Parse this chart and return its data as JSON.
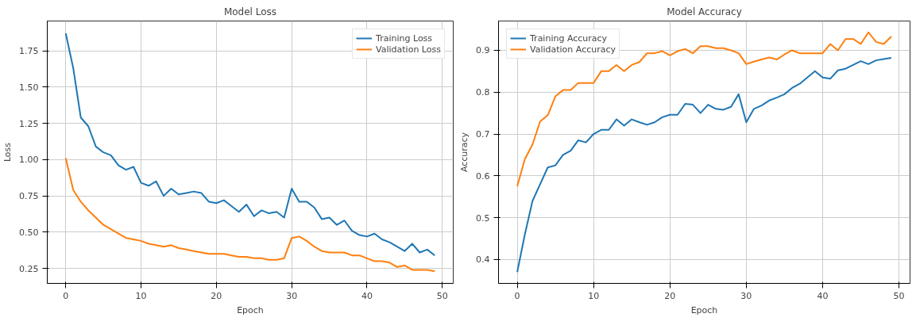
{
  "chart_data": [
    {
      "type": "line",
      "title": "Model Loss",
      "xlabel": "Epoch",
      "ylabel": "Loss",
      "x": [
        0,
        1,
        2,
        3,
        4,
        5,
        6,
        7,
        8,
        9,
        10,
        11,
        12,
        13,
        14,
        15,
        16,
        17,
        18,
        19,
        20,
        21,
        22,
        23,
        24,
        25,
        26,
        27,
        28,
        29,
        30,
        31,
        32,
        33,
        34,
        35,
        36,
        37,
        38,
        39,
        40,
        41,
        42,
        43,
        44,
        45,
        46,
        47,
        48,
        49
      ],
      "series": [
        {
          "name": "Training Loss",
          "color": "#1f77b4",
          "values": [
            1.87,
            1.63,
            1.29,
            1.23,
            1.09,
            1.05,
            1.03,
            0.96,
            0.93,
            0.95,
            0.84,
            0.82,
            0.85,
            0.75,
            0.8,
            0.76,
            0.77,
            0.78,
            0.77,
            0.71,
            0.7,
            0.72,
            0.68,
            0.64,
            0.69,
            0.61,
            0.65,
            0.63,
            0.64,
            0.6,
            0.8,
            0.71,
            0.71,
            0.67,
            0.59,
            0.6,
            0.55,
            0.58,
            0.51,
            0.48,
            0.47,
            0.49,
            0.45,
            0.43,
            0.4,
            0.37,
            0.42,
            0.36,
            0.38,
            0.34
          ]
        },
        {
          "name": "Validation Loss",
          "color": "#ff7f0e",
          "values": [
            1.01,
            0.79,
            0.71,
            0.65,
            0.6,
            0.55,
            0.52,
            0.49,
            0.46,
            0.45,
            0.44,
            0.42,
            0.41,
            0.4,
            0.41,
            0.39,
            0.38,
            0.37,
            0.36,
            0.35,
            0.35,
            0.35,
            0.34,
            0.33,
            0.33,
            0.32,
            0.32,
            0.31,
            0.31,
            0.32,
            0.46,
            0.47,
            0.44,
            0.4,
            0.37,
            0.36,
            0.36,
            0.36,
            0.34,
            0.34,
            0.32,
            0.3,
            0.3,
            0.29,
            0.26,
            0.27,
            0.24,
            0.24,
            0.24,
            0.23
          ]
        }
      ],
      "xlim": [
        -2.45,
        51.45
      ],
      "xticks": [
        0,
        10,
        20,
        30,
        40,
        50
      ],
      "ylim": [
        0.147,
        1.955
      ],
      "yticks": [
        {
          "value": 0.25,
          "label": "0.25"
        },
        {
          "value": 0.5,
          "label": "0.50"
        },
        {
          "value": 0.75,
          "label": "0.75"
        },
        {
          "value": 1.0,
          "label": "1.00"
        },
        {
          "value": 1.25,
          "label": "1.25"
        },
        {
          "value": 1.5,
          "label": "1.50"
        },
        {
          "value": 1.75,
          "label": "1.75"
        }
      ],
      "grid": true,
      "legend": "top right",
      "line_style": "solid"
    },
    {
      "type": "line",
      "title": "Model Accuracy",
      "xlabel": "Epoch",
      "ylabel": "Accuracy",
      "x": [
        0,
        1,
        2,
        3,
        4,
        5,
        6,
        7,
        8,
        9,
        10,
        11,
        12,
        13,
        14,
        15,
        16,
        17,
        18,
        19,
        20,
        21,
        22,
        23,
        24,
        25,
        26,
        27,
        28,
        29,
        30,
        31,
        32,
        33,
        34,
        35,
        36,
        37,
        38,
        39,
        40,
        41,
        42,
        43,
        44,
        45,
        46,
        47,
        48,
        49
      ],
      "series": [
        {
          "name": "Training Accuracy",
          "color": "#1f77b4",
          "values": [
            0.37,
            0.46,
            0.54,
            0.58,
            0.62,
            0.625,
            0.65,
            0.66,
            0.685,
            0.68,
            0.7,
            0.71,
            0.71,
            0.735,
            0.72,
            0.735,
            0.728,
            0.722,
            0.728,
            0.74,
            0.746,
            0.746,
            0.772,
            0.77,
            0.75,
            0.77,
            0.76,
            0.758,
            0.765,
            0.795,
            0.728,
            0.76,
            0.768,
            0.78,
            0.787,
            0.795,
            0.81,
            0.82,
            0.835,
            0.85,
            0.835,
            0.832,
            0.852,
            0.856,
            0.865,
            0.874,
            0.867,
            0.876,
            0.879,
            0.882
          ]
        },
        {
          "name": "Validation Accuracy",
          "color": "#ff7f0e",
          "values": [
            0.575,
            0.64,
            0.675,
            0.73,
            0.745,
            0.79,
            0.805,
            0.805,
            0.822,
            0.822,
            0.822,
            0.85,
            0.85,
            0.865,
            0.85,
            0.865,
            0.872,
            0.893,
            0.893,
            0.898,
            0.888,
            0.898,
            0.903,
            0.893,
            0.91,
            0.91,
            0.905,
            0.905,
            0.9,
            0.893,
            0.867,
            0.873,
            0.878,
            0.883,
            0.878,
            0.89,
            0.9,
            0.893,
            0.893,
            0.893,
            0.893,
            0.915,
            0.9,
            0.927,
            0.927,
            0.915,
            0.943,
            0.92,
            0.915,
            0.933
          ]
        }
      ],
      "xlim": [
        -2.45,
        51.45
      ],
      "xticks": [
        0,
        10,
        20,
        30,
        40,
        50
      ],
      "ylim": [
        0.343,
        0.97
      ],
      "yticks": [
        0.4,
        0.5,
        0.6,
        0.7,
        0.8,
        0.9
      ],
      "grid": true,
      "legend": "top left",
      "line_style": "solid"
    }
  ]
}
